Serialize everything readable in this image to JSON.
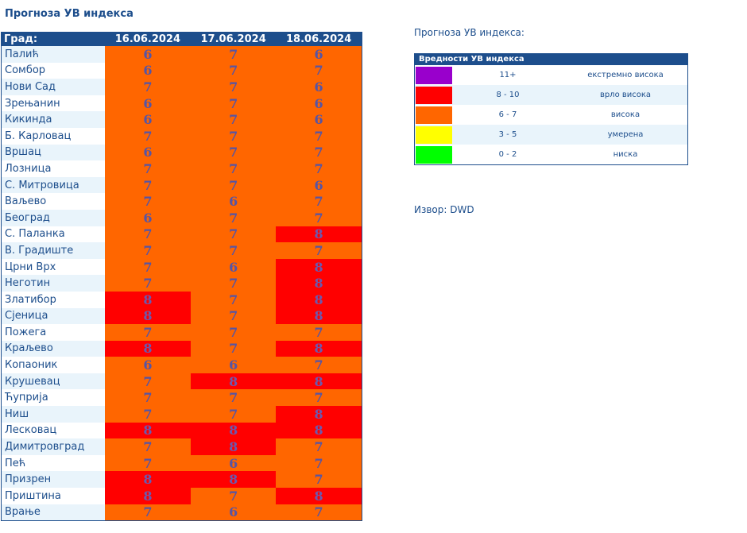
{
  "title": "Прогноза УВ индекса",
  "table": {
    "city_header": "Град:",
    "dates": [
      "16.06.2024",
      "17.06.2024",
      "18.06.2024"
    ],
    "rows": [
      {
        "city": "Палић",
        "values": [
          "6",
          "7",
          "6"
        ]
      },
      {
        "city": "Сомбор",
        "values": [
          "6",
          "7",
          "7"
        ]
      },
      {
        "city": "Нови Сад",
        "values": [
          "7",
          "7",
          "6"
        ]
      },
      {
        "city": "Зрењанин",
        "values": [
          "6",
          "7",
          "6"
        ]
      },
      {
        "city": "Кикинда",
        "values": [
          "6",
          "7",
          "6"
        ]
      },
      {
        "city": "Б. Карловац",
        "values": [
          "7",
          "7",
          "7"
        ]
      },
      {
        "city": "Вршац",
        "values": [
          "6",
          "7",
          "7"
        ]
      },
      {
        "city": "Лозница",
        "values": [
          "7",
          "7",
          "7"
        ]
      },
      {
        "city": "С. Митровица",
        "values": [
          "7",
          "7",
          "6"
        ]
      },
      {
        "city": "Ваљево",
        "values": [
          "7",
          "6",
          "7"
        ]
      },
      {
        "city": "Београд",
        "values": [
          "6",
          "7",
          "7"
        ]
      },
      {
        "city": "С. Паланка",
        "values": [
          "7",
          "7",
          "8"
        ]
      },
      {
        "city": "В. Градиште",
        "values": [
          "7",
          "7",
          "7"
        ]
      },
      {
        "city": "Црни Врх",
        "values": [
          "7",
          "6",
          "8"
        ]
      },
      {
        "city": "Неготин",
        "values": [
          "7",
          "7",
          "8"
        ]
      },
      {
        "city": "Златибор",
        "values": [
          "8",
          "7",
          "8"
        ]
      },
      {
        "city": "Сјеница",
        "values": [
          "8",
          "7",
          "8"
        ]
      },
      {
        "city": "Пожега",
        "values": [
          "7",
          "7",
          "7"
        ]
      },
      {
        "city": "Краљево",
        "values": [
          "8",
          "7",
          "8"
        ]
      },
      {
        "city": "Копаоник",
        "values": [
          "6",
          "6",
          "7"
        ]
      },
      {
        "city": "Крушевац",
        "values": [
          "7",
          "8",
          "8"
        ]
      },
      {
        "city": "Ћуприја",
        "values": [
          "7",
          "7",
          "7"
        ]
      },
      {
        "city": "Ниш",
        "values": [
          "7",
          "7",
          "8"
        ]
      },
      {
        "city": "Лесковац",
        "values": [
          "8",
          "8",
          "8"
        ]
      },
      {
        "city": "Димитровград",
        "values": [
          "7",
          "8",
          "7"
        ]
      },
      {
        "city": "Пећ",
        "values": [
          "7",
          "6",
          "7"
        ]
      },
      {
        "city": "Призрен",
        "values": [
          "8",
          "8",
          "7"
        ]
      },
      {
        "city": "Приштина",
        "values": [
          "8",
          "7",
          "8"
        ]
      },
      {
        "city": "Врање",
        "values": [
          "7",
          "6",
          "7"
        ]
      }
    ]
  },
  "legend": {
    "caption": "Прогноза УВ индекса:",
    "header": "Вредности УВ индекса",
    "items": [
      {
        "color": "#9900cc",
        "range": "11+",
        "label": "екстремно висока"
      },
      {
        "color": "#ff0000",
        "range": "8 - 10",
        "label": "врло висока"
      },
      {
        "color": "#ff6600",
        "range": "6 - 7",
        "label": "висока"
      },
      {
        "color": "#ffff00",
        "range": "3 - 5",
        "label": "умерена"
      },
      {
        "color": "#00ff00",
        "range": "0 - 2",
        "label": "ниска"
      }
    ]
  },
  "source": "Извор: DWD"
}
